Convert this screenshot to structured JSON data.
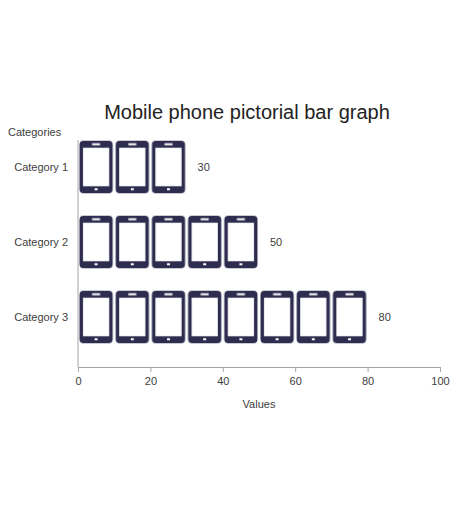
{
  "chart_data": {
    "type": "bar",
    "title": "Mobile phone pictorial bar graph",
    "x_label": "Values",
    "y_label": "Categories",
    "categories": [
      "Category 1",
      "Category 2",
      "Category 3"
    ],
    "values": [
      30,
      50,
      80
    ],
    "color": "#2e2c4f",
    "orientation": "horizontal",
    "data_labels": true,
    "xlim": [
      0,
      100
    ],
    "xticks": [
      0,
      20,
      40,
      60,
      80,
      100
    ],
    "grid": false
  }
}
